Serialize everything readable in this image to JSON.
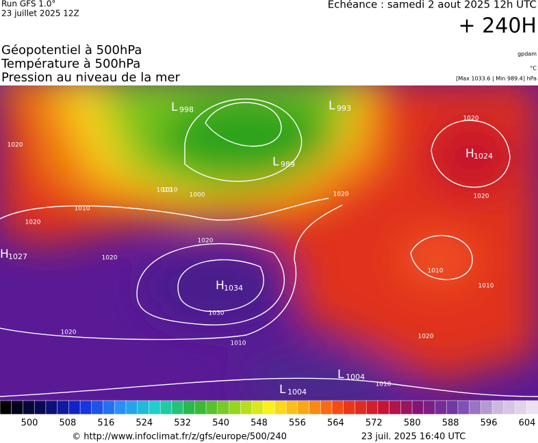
{
  "header": {
    "run": "Run GFS 1.0°",
    "run_date": "23 juillet 2025 12Z",
    "valid": "Echéance : samedi 2 aout 2025 12h UTC",
    "lead": "+ 240H",
    "lines": [
      "Géopotentiel à 500hPa",
      "Température à 500hPa",
      "Pression au niveau de la mer"
    ],
    "unit_geo": "gpdam",
    "unit_temp": "°C",
    "pressure_range": "[Max 1033.6 | Min 989.4] hPa"
  },
  "centers": [
    {
      "letter": "L",
      "value": 998
    },
    {
      "letter": "L",
      "value": 993
    },
    {
      "letter": "L",
      "value": 989
    },
    {
      "letter": "H",
      "value": 1024
    },
    {
      "letter": "H",
      "value": 1027
    },
    {
      "letter": "H",
      "value": 1034
    },
    {
      "letter": "L",
      "value": 1004
    },
    {
      "letter": "L",
      "value": 1004
    }
  ],
  "isobar_labels": [
    1020,
    1010,
    1020,
    1010,
    1000,
    1020,
    1020,
    1020,
    1020,
    1030,
    1020,
    1010,
    1010,
    1010,
    1020,
    1020,
    1010,
    1010
  ],
  "legend": {
    "ticks": [
      500,
      508,
      516,
      524,
      532,
      540,
      548,
      556,
      564,
      572,
      580,
      588,
      596,
      604
    ]
  },
  "footer": {
    "source": "© http://www.infoclimat.fr/z/gfs/europe/500/240",
    "generated": "23 juil. 2025 16:40 UTC"
  }
}
